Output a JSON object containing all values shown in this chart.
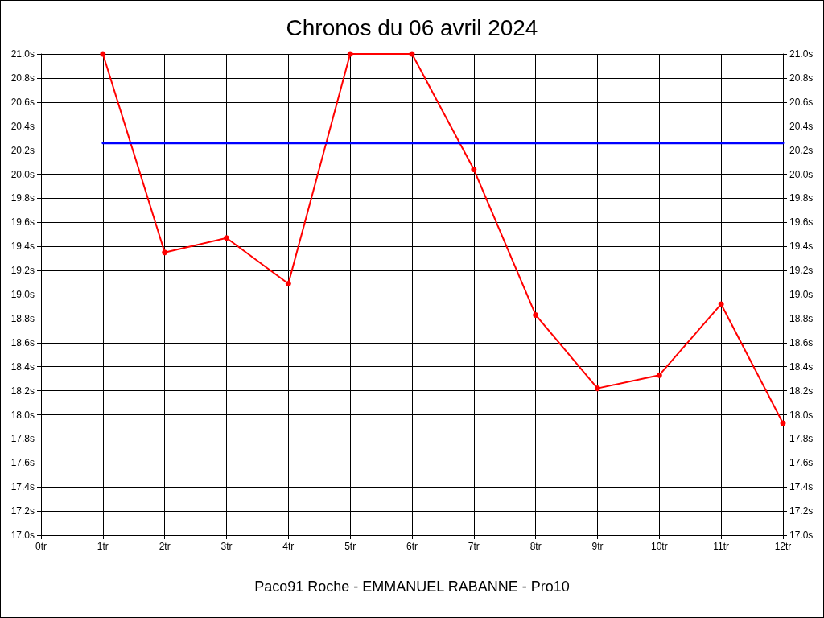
{
  "chart_data": {
    "type": "line",
    "title": "Chronos du 06 avril 2024",
    "xlabel": "Paco91 Roche - EMMANUEL RABANNE - Pro10",
    "series": [
      {
        "color": "#ff0000",
        "marker": "circle",
        "x": [
          1,
          2,
          3,
          4,
          5,
          6,
          7,
          8,
          9,
          10,
          11,
          12
        ],
        "values": [
          21.0,
          19.35,
          19.47,
          19.09,
          21.0,
          21.0,
          20.04,
          18.83,
          18.22,
          18.33,
          18.92,
          17.93
        ]
      },
      {
        "color": "#0000ff",
        "marker": "none",
        "x": [
          1,
          12
        ],
        "values": [
          20.26,
          20.26
        ]
      }
    ],
    "xlim": [
      0,
      12
    ],
    "xticks": [
      {
        "value": 0,
        "label": "0tr"
      },
      {
        "value": 1,
        "label": "1tr"
      },
      {
        "value": 2,
        "label": "2tr"
      },
      {
        "value": 3,
        "label": "3tr"
      },
      {
        "value": 4,
        "label": "4tr"
      },
      {
        "value": 5,
        "label": "5tr"
      },
      {
        "value": 6,
        "label": "6tr"
      },
      {
        "value": 7,
        "label": "7tr"
      },
      {
        "value": 8,
        "label": "8tr"
      },
      {
        "value": 9,
        "label": "9tr"
      },
      {
        "value": 10,
        "label": "10tr"
      },
      {
        "value": 11,
        "label": "11tr"
      },
      {
        "value": 12,
        "label": "12tr"
      }
    ],
    "ylim": [
      17.0,
      21.0
    ],
    "yticks": [
      {
        "value": 17.0,
        "label": "17.0s"
      },
      {
        "value": 17.2,
        "label": "17.2s"
      },
      {
        "value": 17.4,
        "label": "17.4s"
      },
      {
        "value": 17.6,
        "label": "17.6s"
      },
      {
        "value": 17.8,
        "label": "17.8s"
      },
      {
        "value": 18.0,
        "label": "18.0s"
      },
      {
        "value": 18.2,
        "label": "18.2s"
      },
      {
        "value": 18.4,
        "label": "18.4s"
      },
      {
        "value": 18.6,
        "label": "18.6s"
      },
      {
        "value": 18.8,
        "label": "18.8s"
      },
      {
        "value": 19.0,
        "label": "19.0s"
      },
      {
        "value": 19.2,
        "label": "19.2s"
      },
      {
        "value": 19.4,
        "label": "19.4s"
      },
      {
        "value": 19.6,
        "label": "19.6s"
      },
      {
        "value": 19.8,
        "label": "19.8s"
      },
      {
        "value": 20.0,
        "label": "20.0s"
      },
      {
        "value": 20.2,
        "label": "20.2s"
      },
      {
        "value": 20.4,
        "label": "20.4s"
      },
      {
        "value": 20.6,
        "label": "20.6s"
      },
      {
        "value": 20.8,
        "label": "20.8s"
      },
      {
        "value": 21.0,
        "label": "21.0s"
      }
    ],
    "y2lim": [
      17.0,
      21.0
    ],
    "y2ticks": [
      {
        "value": 17.0,
        "label": "17.0s"
      },
      {
        "value": 17.2,
        "label": "17.2s"
      },
      {
        "value": 17.4,
        "label": "17.4s"
      },
      {
        "value": 17.6,
        "label": "17.6s"
      },
      {
        "value": 17.8,
        "label": "17.8s"
      },
      {
        "value": 18.0,
        "label": "18.0s"
      },
      {
        "value": 18.2,
        "label": "18.2s"
      },
      {
        "value": 18.4,
        "label": "18.4s"
      },
      {
        "value": 18.6,
        "label": "18.6s"
      },
      {
        "value": 18.8,
        "label": "18.8s"
      },
      {
        "value": 19.0,
        "label": "19.0s"
      },
      {
        "value": 19.2,
        "label": "19.2s"
      },
      {
        "value": 19.4,
        "label": "19.4s"
      },
      {
        "value": 19.6,
        "label": "19.6s"
      },
      {
        "value": 19.8,
        "label": "19.8s"
      },
      {
        "value": 20.0,
        "label": "20.0s"
      },
      {
        "value": 20.2,
        "label": "20.2s"
      },
      {
        "value": 20.4,
        "label": "20.4s"
      },
      {
        "value": 20.6,
        "label": "20.6s"
      },
      {
        "value": 20.8,
        "label": "20.8s"
      },
      {
        "value": 21.0,
        "label": "21.0s"
      }
    ],
    "grid": true
  }
}
